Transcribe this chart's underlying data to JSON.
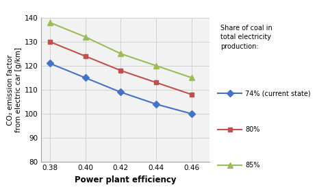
{
  "x": [
    0.38,
    0.4,
    0.42,
    0.44,
    0.46
  ],
  "series": [
    {
      "label": "74% (current state)",
      "color": "#4472C4",
      "marker": "D",
      "markersize": 5,
      "values": [
        121,
        115,
        109,
        104,
        100
      ]
    },
    {
      "label": "80%",
      "color": "#C0504D",
      "marker": "s",
      "markersize": 5,
      "values": [
        130,
        124,
        118,
        113,
        108
      ]
    },
    {
      "label": "85%",
      "color": "#9BBB59",
      "marker": "^",
      "markersize": 6,
      "values": [
        138,
        132,
        125,
        120,
        115
      ]
    }
  ],
  "xlabel": "Power plant efficiency",
  "ylabel": "CO₂ emission factor\nfrom electric car [g/km]",
  "ylim": [
    80,
    140
  ],
  "xlim": [
    0.375,
    0.47
  ],
  "yticks": [
    80,
    90,
    100,
    110,
    120,
    130,
    140
  ],
  "xticks": [
    0.38,
    0.4,
    0.42,
    0.44,
    0.46
  ],
  "xtick_labels": [
    "0.38",
    "0.40",
    "0.42",
    "0.44",
    "0.46"
  ],
  "legend_title": "Share of coal in\ntotal electricity\nproduction:",
  "bg_color": "#f2f2f2",
  "grid_color": "#d0d0d0",
  "spine_color": "#a0a0a0"
}
